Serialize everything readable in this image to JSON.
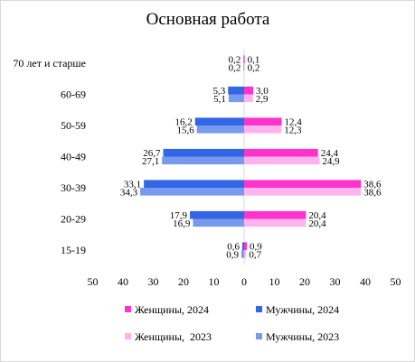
{
  "chart_data": {
    "type": "bar",
    "orientation": "horizontal",
    "layout": "population-pyramid",
    "title": "Основная работа",
    "categories": [
      "70 лет и старше",
      "60-69",
      "50-59",
      "40-49",
      "30-39",
      "20-29",
      "15-19"
    ],
    "x_ticks": [
      "50",
      "40",
      "30",
      "20",
      "10",
      "0",
      "10",
      "20",
      "30",
      "40",
      "50"
    ],
    "xlim": [
      -50,
      50
    ],
    "legend_position": "bottom",
    "series": [
      {
        "name": "Женщины, 2024",
        "side": "right",
        "color": "#ff33cc",
        "values": [
          0.1,
          3.0,
          12.4,
          24.4,
          38.6,
          20.4,
          0.9
        ],
        "labels": [
          "0,1",
          "3,0",
          "12,4",
          "24,4",
          "38,6",
          "20,4",
          "0,9"
        ]
      },
      {
        "name": "Женщины,  2023",
        "side": "right",
        "color": "#ffb3ee",
        "values": [
          0.2,
          2.9,
          12.3,
          24.9,
          38.6,
          20.4,
          0.7
        ],
        "labels": [
          "0,2",
          "2,9",
          "12,3",
          "24,9",
          "38,6",
          "20,4",
          "0,7"
        ]
      },
      {
        "name": "Мужчины, 2024",
        "side": "left",
        "color": "#3366e6",
        "values": [
          0.2,
          5.3,
          16.2,
          26.7,
          33.1,
          17.9,
          0.6
        ],
        "labels": [
          "0,2",
          "5,3",
          "16,2",
          "26,7",
          "33,1",
          "17,9",
          "0,6"
        ]
      },
      {
        "name": "Мужчины, 2023",
        "side": "left",
        "color": "#7799ee",
        "values": [
          0.2,
          5.1,
          15.6,
          27.1,
          34.3,
          16.9,
          0.9
        ],
        "labels": [
          "0,2",
          "5,1",
          "15,6",
          "27,1",
          "34,3",
          "16,9",
          "0,9"
        ]
      }
    ],
    "legend_order": [
      "Женщины, 2024",
      "Мужчины, 2024",
      "Женщины,  2023",
      "Мужчины, 2023"
    ]
  }
}
